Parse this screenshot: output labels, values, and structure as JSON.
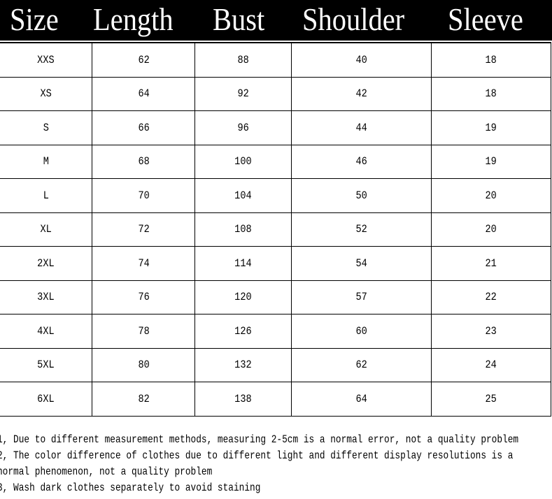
{
  "header": [
    "Size",
    "Length",
    "Bust",
    "Shoulder",
    "Sleeve"
  ],
  "rows": [
    [
      "XXS",
      "62",
      "88",
      "40",
      "18"
    ],
    [
      "XS",
      "64",
      "92",
      "42",
      "18"
    ],
    [
      "S",
      "66",
      "96",
      "44",
      "19"
    ],
    [
      "M",
      "68",
      "100",
      "46",
      "19"
    ],
    [
      "L",
      "70",
      "104",
      "50",
      "20"
    ],
    [
      "XL",
      "72",
      "108",
      "52",
      "20"
    ],
    [
      "2XL",
      "74",
      "114",
      "54",
      "21"
    ],
    [
      "3XL",
      "76",
      "120",
      "57",
      "22"
    ],
    [
      "4XL",
      "78",
      "126",
      "60",
      "23"
    ],
    [
      "5XL",
      "80",
      "132",
      "62",
      "24"
    ],
    [
      "6XL",
      "82",
      "138",
      "64",
      "25"
    ]
  ],
  "notes": [
    "1, Due to different measurement methods, measuring 2-5cm is a normal error, not a quality problem",
    "2, The color difference of clothes due to different light and different display resolutions is a",
    "normal phenomenon, not a quality problem",
    "3, Wash dark clothes separately to avoid staining"
  ]
}
